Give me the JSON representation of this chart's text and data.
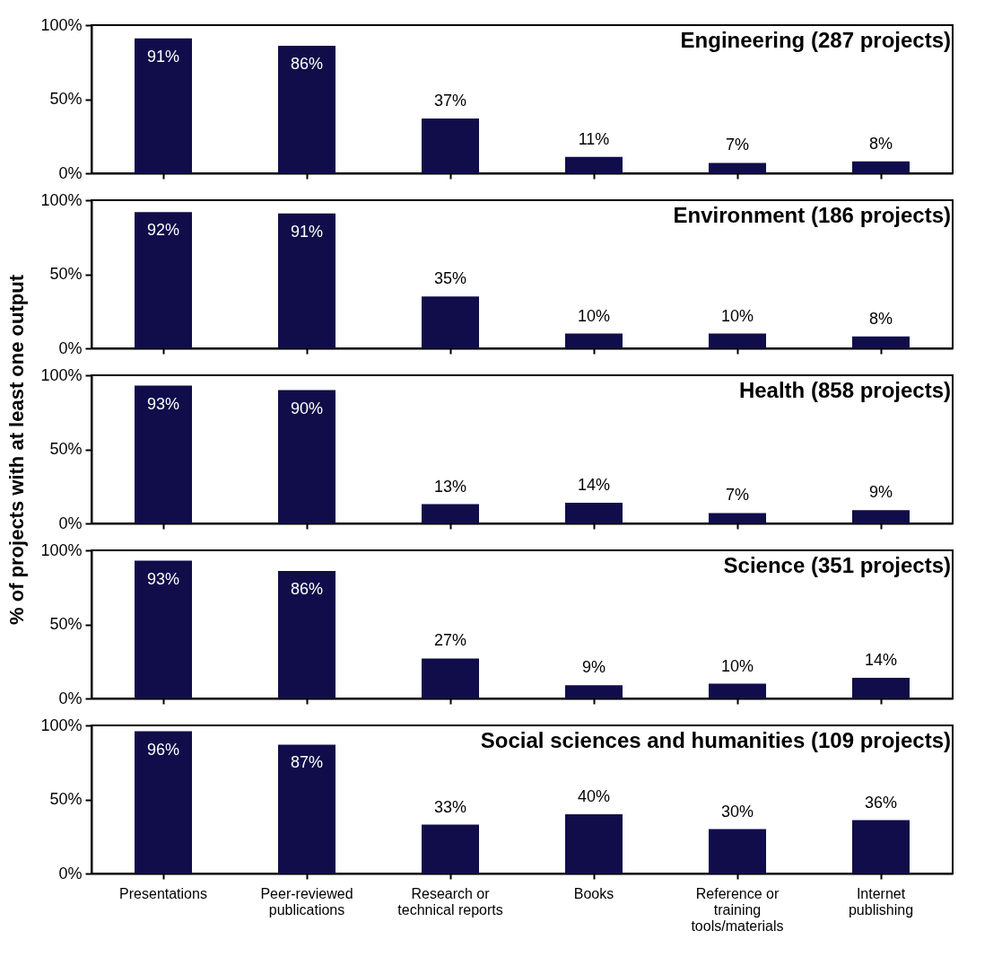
{
  "chart_data": [
    {
      "type": "bar",
      "title": "Engineering (287 projects)",
      "categories": [
        null,
        null,
        null,
        null,
        null,
        null
      ],
      "values": [
        91,
        86,
        37,
        11,
        7,
        8
      ],
      "value_labels": [
        "91%",
        "86%",
        "37%",
        "11%",
        "7%",
        "8%"
      ],
      "color": "#100d4a",
      "ylim": [
        0,
        100
      ],
      "yticks": [
        {
          "value": 0,
          "label": "0%"
        },
        {
          "value": 50,
          "label": "50%"
        },
        {
          "value": 100,
          "label": "100%"
        }
      ],
      "tick_labels": "y"
    },
    {
      "type": "bar",
      "title": "Environment (186 projects)",
      "categories": [
        null,
        null,
        null,
        null,
        null,
        null
      ],
      "values": [
        92,
        91,
        35,
        10,
        10,
        8
      ],
      "value_labels": [
        "92%",
        "91%",
        "35%",
        "10%",
        "10%",
        "8%"
      ],
      "color": "#100d4a",
      "ylim": [
        0,
        100
      ],
      "yticks": [
        {
          "value": 0,
          "label": "0%"
        },
        {
          "value": 50,
          "label": "50%"
        },
        {
          "value": 100,
          "label": "100%"
        }
      ],
      "tick_labels": "y"
    },
    {
      "type": "bar",
      "title": "Health (858 projects)",
      "ylabel": "% of projects with at least one output",
      "categories": [
        null,
        null,
        null,
        null,
        null,
        null
      ],
      "values": [
        93,
        90,
        13,
        14,
        7,
        9
      ],
      "value_labels": [
        "93%",
        "90%",
        "13%",
        "14%",
        "7%",
        "9%"
      ],
      "color": "#100d4a",
      "ylim": [
        0,
        100
      ],
      "yticks": [
        {
          "value": 0,
          "label": "0%"
        },
        {
          "value": 50,
          "label": "50%"
        },
        {
          "value": 100,
          "label": "100%"
        }
      ],
      "tick_labels": "y"
    },
    {
      "type": "bar",
      "title": "Science (351 projects)",
      "categories": [
        null,
        null,
        null,
        null,
        null,
        null
      ],
      "values": [
        93,
        86,
        27,
        9,
        10,
        14
      ],
      "value_labels": [
        "93%",
        "86%",
        "27%",
        "9%",
        "10%",
        "14%"
      ],
      "color": "#100d4a",
      "ylim": [
        0,
        100
      ],
      "yticks": [
        {
          "value": 0,
          "label": "0%"
        },
        {
          "value": 50,
          "label": "50%"
        },
        {
          "value": 100,
          "label": "100%"
        }
      ],
      "tick_labels": "y"
    },
    {
      "type": "bar",
      "title": "Social sciences and humanities (109 projects)",
      "categories": [
        "Presentations",
        "Peer-reviewed publications",
        "Research or technical reports",
        "Books",
        "Reference or training tools/materials",
        "Internet publishing"
      ],
      "values": [
        96,
        87,
        33,
        40,
        30,
        36
      ],
      "value_labels": [
        "96%",
        "87%",
        "33%",
        "40%",
        "30%",
        "36%"
      ],
      "color": "#100d4a",
      "ylim": [
        0,
        100
      ],
      "yticks": [
        {
          "value": 0,
          "label": "0%"
        },
        {
          "value": 50,
          "label": "50%"
        },
        {
          "value": 100,
          "label": "100%"
        }
      ]
    }
  ]
}
